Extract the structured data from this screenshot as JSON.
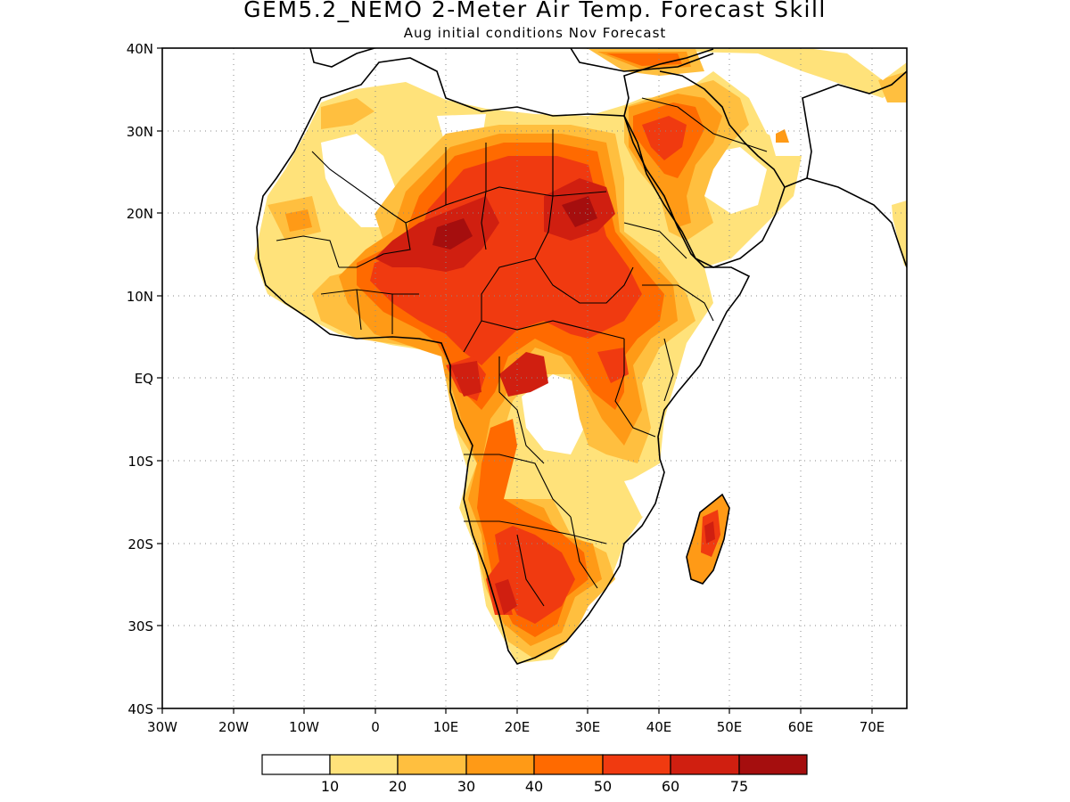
{
  "title": "GEM5.2_NEMO 2-Meter Air Temp. Forecast Skill",
  "subtitle": "Aug initial conditions  Nov Forecast",
  "map": {
    "lon_range": [
      -30,
      75
    ],
    "lat_range": [
      -40,
      40
    ],
    "lat_labels": [
      "40N",
      "30N",
      "20N",
      "10N",
      "EQ",
      "10S",
      "20S",
      "30S",
      "40S"
    ],
    "lon_labels": [
      "30W",
      "20W",
      "10W",
      "0",
      "10E",
      "20E",
      "30E",
      "40E",
      "50E",
      "60E",
      "70E"
    ],
    "grid": "dotted",
    "coastline_color": "#000000"
  },
  "colorbar": {
    "labels": [
      "10",
      "20",
      "30",
      "40",
      "50",
      "60",
      "75"
    ],
    "colors": [
      "#ffffff",
      "#ffe27a",
      "#ffbf3f",
      "#ff9a16",
      "#ff6a00",
      "#f03a10",
      "#d01f10",
      "#a50e0e"
    ]
  }
}
